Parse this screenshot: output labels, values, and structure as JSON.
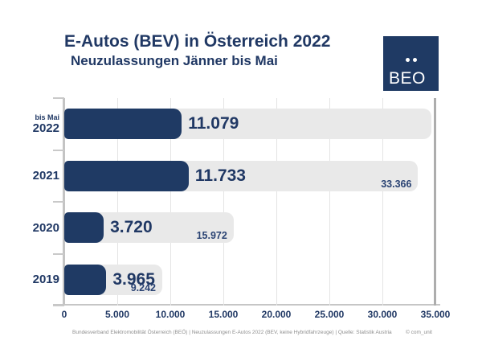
{
  "header": {
    "title": "E-Autos (BEV) in Österreich 2022",
    "subtitle": "Neuzulassungen Jänner bis Mai"
  },
  "logo": {
    "text": "BEO"
  },
  "chart_data": {
    "type": "bar",
    "orientation": "horizontal",
    "title": "E-Autos (BEV) in Österreich 2022 — Neuzulassungen Jänner bis Mai",
    "xlim": [
      0,
      35000
    ],
    "x_tick_step": 5000,
    "x_tick_labels": [
      "0",
      "5.000",
      "10.000",
      "15.000",
      "20.000",
      "25.000",
      "30.000",
      "35.000"
    ],
    "grid": "vertical",
    "rows": [
      {
        "year": "2022",
        "note": "bis Mai",
        "ytd_value": 11079,
        "ytd_label": "11.079",
        "total_value": null,
        "total_label": "",
        "track_estimate": 34600
      },
      {
        "year": "2021",
        "note": "",
        "ytd_value": 11733,
        "ytd_label": "11.733",
        "total_value": 33366,
        "total_label": "33.366"
      },
      {
        "year": "2020",
        "note": "",
        "ytd_value": 3720,
        "ytd_label": "3.720",
        "total_value": 15972,
        "total_label": "15.972"
      },
      {
        "year": "2019",
        "note": "",
        "ytd_value": 3965,
        "ytd_label": "3.965",
        "total_value": 9242,
        "total_label": "9.242"
      }
    ]
  },
  "colors": {
    "navy_bar": "#1f3a64",
    "navy_text": "#203864",
    "track_gray": "#e9e9e9",
    "band_gray": "#f0f0f0",
    "grid_gray": "#e4e4e4"
  },
  "footer": {
    "source": "Bundesverband Elektromobilität Österreich (BEÖ) | Neuzulassungen E-Autos 2022 (BEV, keine Hybridfahrzeuge) | Quelle: Statistik Austria",
    "credit": "© com_unit"
  }
}
